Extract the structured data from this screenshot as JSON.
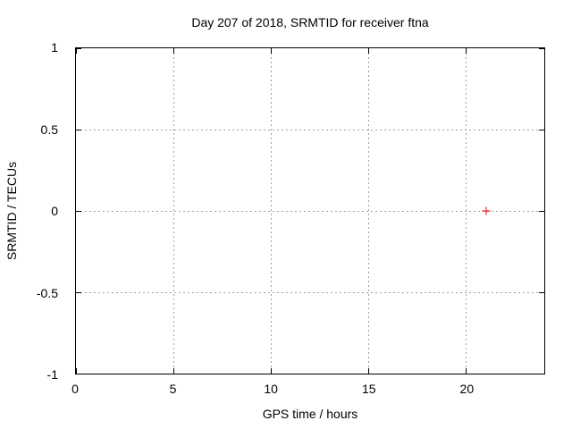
{
  "chart_data": {
    "type": "scatter",
    "title": "Day 207 of 2018, SRMTID for receiver ftna",
    "xlabel": "GPS time / hours",
    "ylabel": "SRMTID / TECUs",
    "xlim": [
      0,
      24
    ],
    "ylim": [
      -1,
      1
    ],
    "x_ticks": [
      0,
      5,
      10,
      15,
      20
    ],
    "y_ticks": [
      1,
      0.5,
      0,
      -0.5,
      -1
    ],
    "grid": true,
    "legend": "none",
    "series": [
      {
        "name": "SRMTID",
        "marker": "plus",
        "color": "#e00000",
        "points": [
          [
            21,
            0
          ]
        ]
      }
    ],
    "colors": {
      "background": "#ffffff",
      "border": "#000000",
      "grid": "#a0a0a0",
      "text": "#000000"
    }
  }
}
